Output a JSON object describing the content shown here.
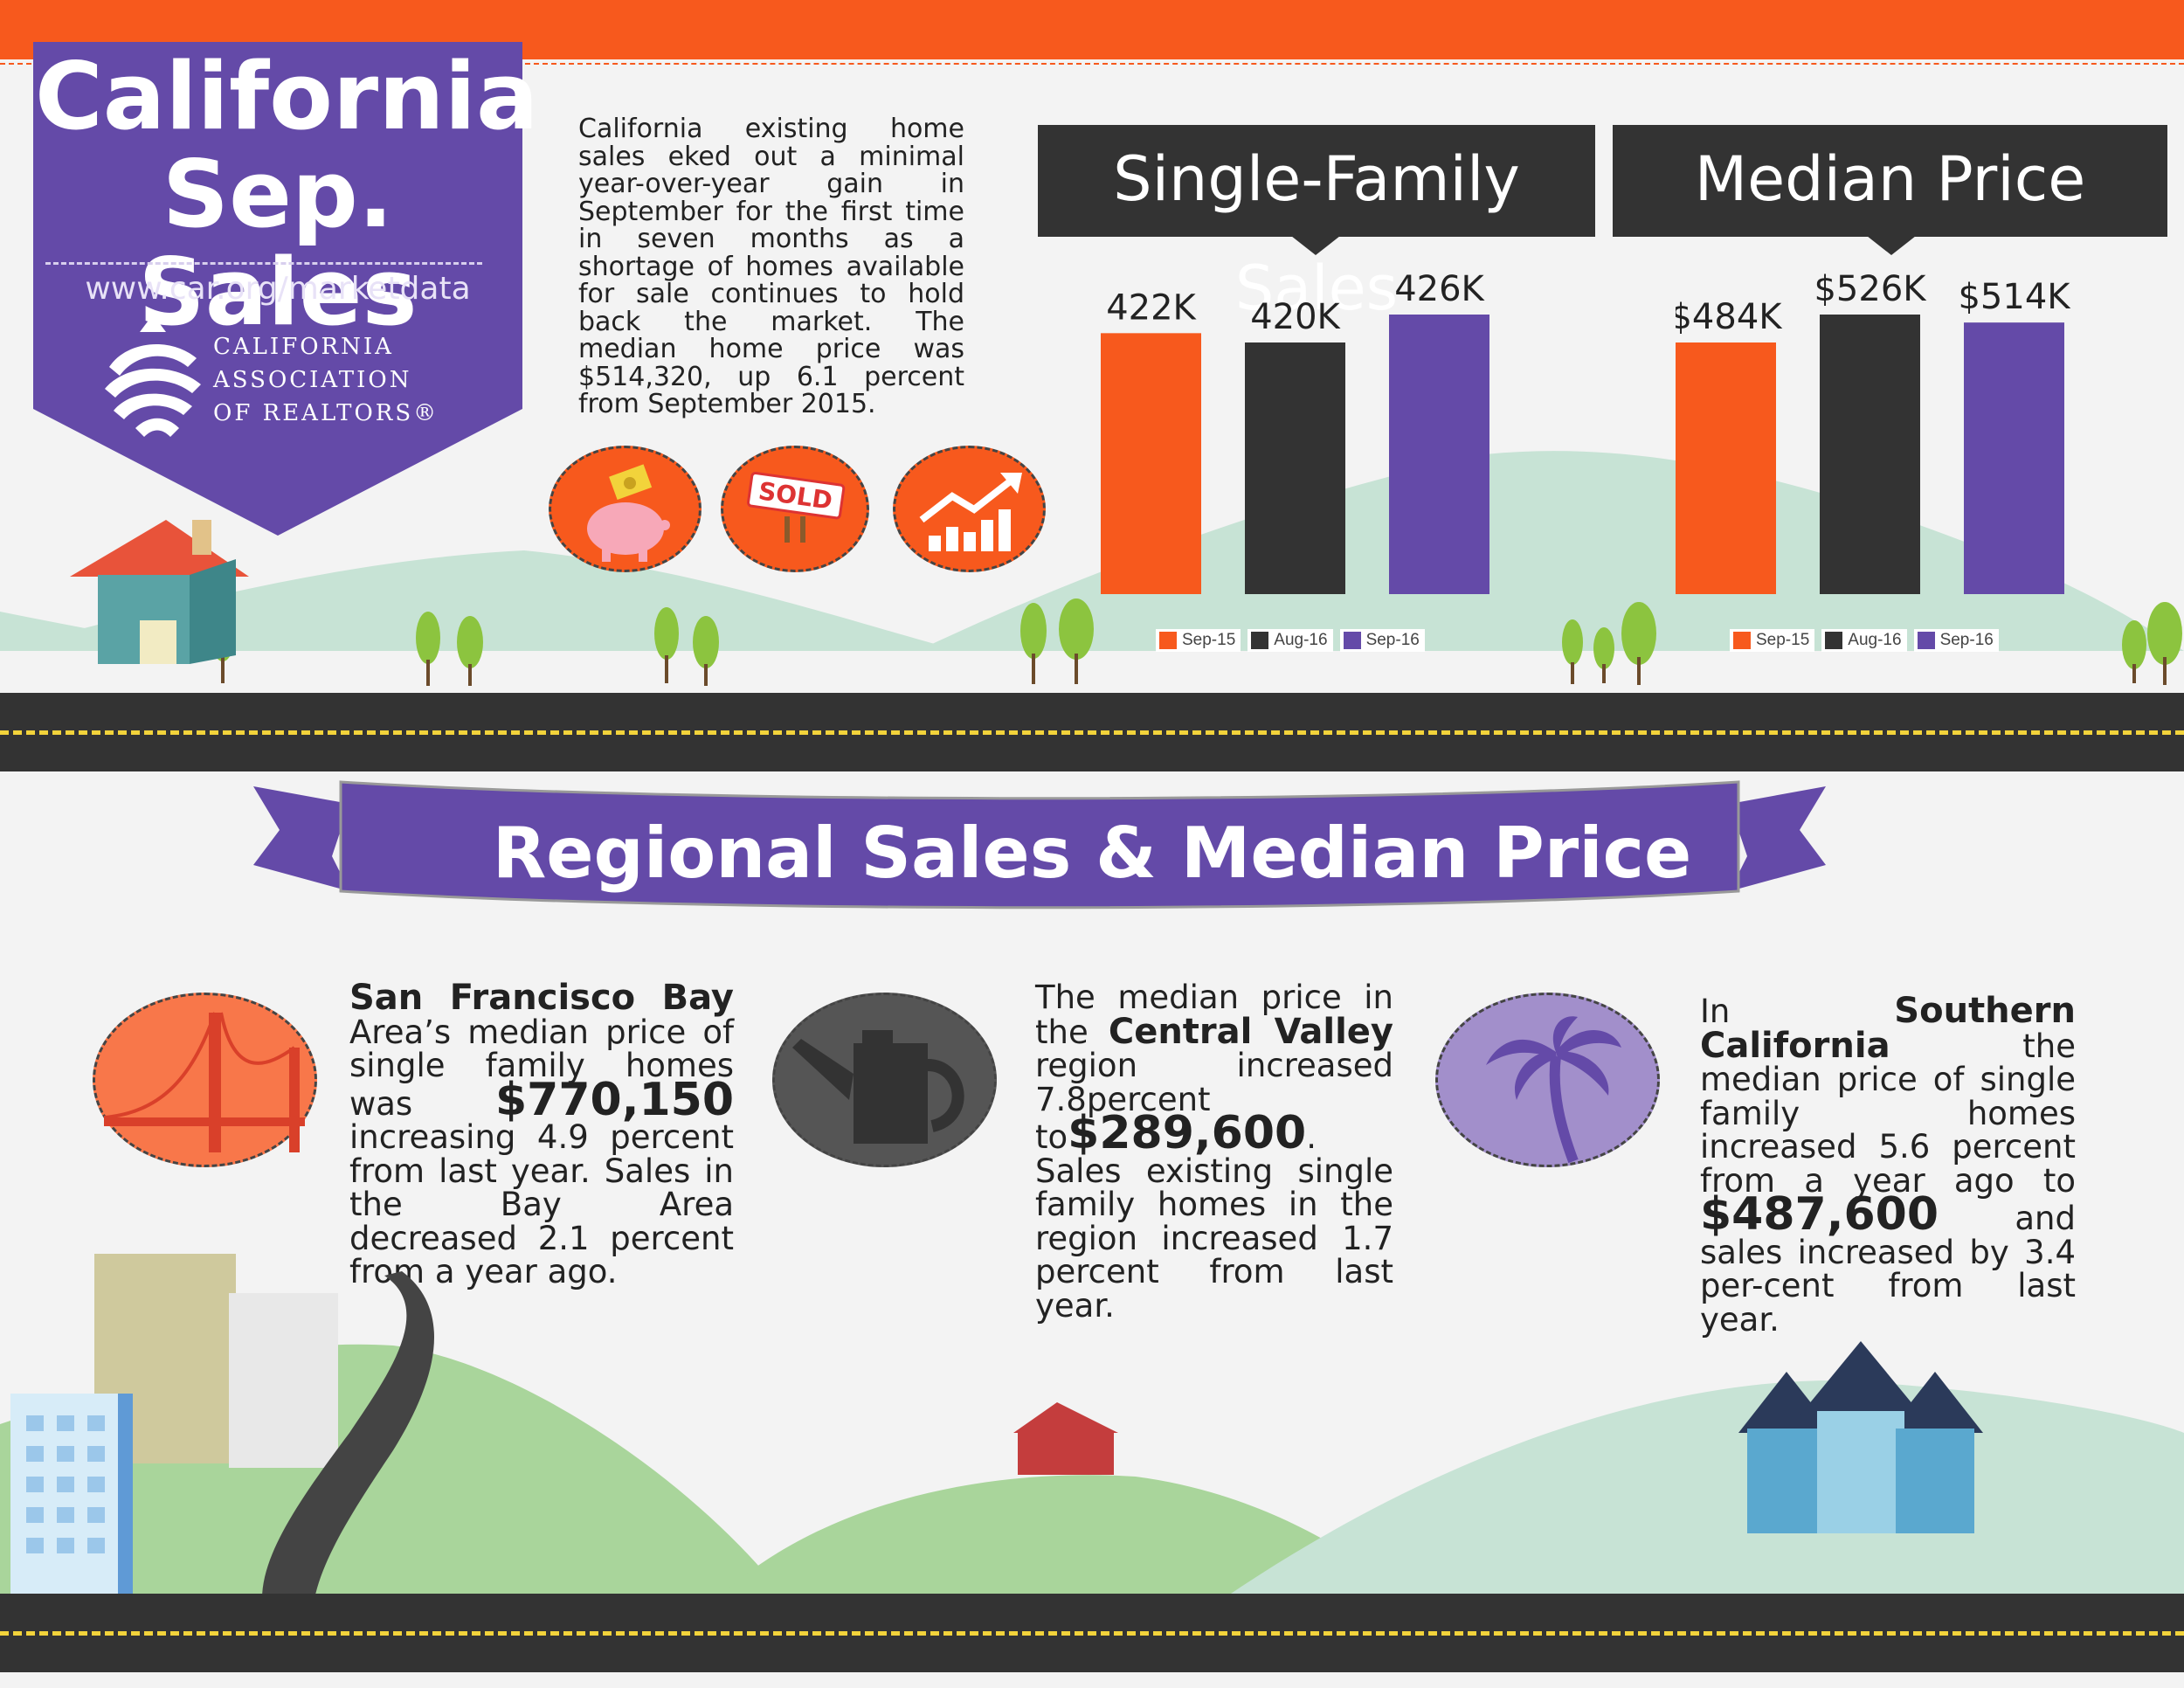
{
  "header": {
    "title_line1": "California",
    "title_line2": "Sep. Sales",
    "url": "www.car.org/marketdata",
    "org_line1": "CALIFORNIA",
    "org_line2": "ASSOCIATION",
    "org_line3": "OF REALTORS®",
    "intro": "California existing home sales eked out a minimal year-over-year gain in September for the first time in seven months as a shortage of homes available for sale continues to hold back the market. The median home price was $514,320, up 6.1 percent from September 2015."
  },
  "icons": {
    "sold_sign": "SOLD"
  },
  "colors": {
    "orange": "#f7591d",
    "dark": "#333333",
    "purple": "#644aa8"
  },
  "chart_data": [
    {
      "type": "bar",
      "title": "Single-Family Sales",
      "categories": [
        "Sep-15",
        "Aug-16",
        "Sep-16"
      ],
      "values": [
        422,
        420,
        426
      ],
      "labels": [
        "422K",
        "420K",
        "426K"
      ],
      "colors": [
        "#f7591d",
        "#333333",
        "#644aa8"
      ],
      "legend": [
        "Sep-15",
        "Aug-16",
        "Sep-16"
      ]
    },
    {
      "type": "bar",
      "title": "Median Price",
      "categories": [
        "Sep-15",
        "Aug-16",
        "Sep-16"
      ],
      "values": [
        484,
        526,
        514
      ],
      "labels": [
        "$484K",
        "$526K",
        "$514K"
      ],
      "colors": [
        "#f7591d",
        "#333333",
        "#644aa8"
      ],
      "legend": [
        "Sep-15",
        "Aug-16",
        "Sep-16"
      ]
    }
  ],
  "regional": {
    "heading": "Regional Sales & Median Price",
    "sf": {
      "name": "San Francisco Bay",
      "t1": "Area’s median price of single family homes was",
      "price": "$770,150",
      "t2": "increasing",
      "t3": "4.9 percent from last year. Sales in the Bay Area decreased 2.1 percent from a year ago."
    },
    "cv": {
      "t1": "The median price in the",
      "name": "Central Valley",
      "t2": "region increased 7.8percent to",
      "price": "$289,600",
      "t3": ". Sales existing single family homes in the region increased 1.7 percent from last year."
    },
    "sc": {
      "t1": "In",
      "name": "Southern California",
      "t2": "the median price of single family homes increased 5.6 percent from a year ago to",
      "price": "$487,600",
      "t3": "and sales increased by 3.4 per-cent from last year."
    }
  }
}
